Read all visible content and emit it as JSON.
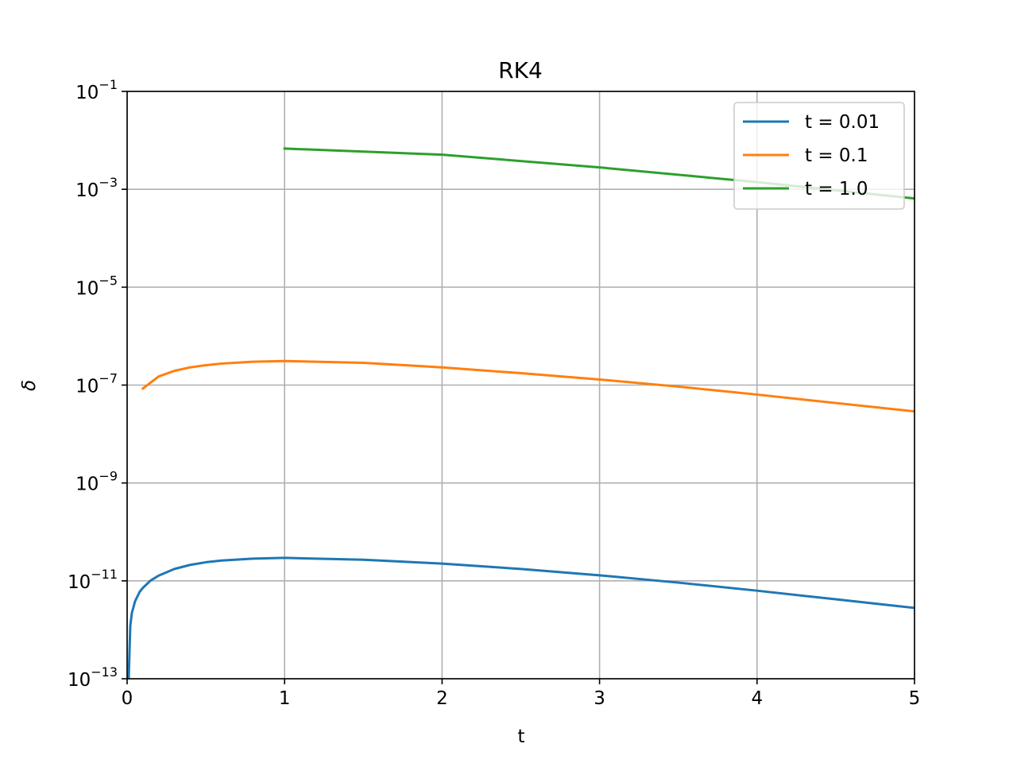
{
  "chart_data": {
    "type": "line",
    "title": "RK4",
    "xlabel": "t",
    "ylabel": "δ",
    "xlim": [
      0,
      5
    ],
    "ylim": [
      1e-13,
      0.1
    ],
    "yscale": "log",
    "grid": true,
    "legend_position": "top-right",
    "x_ticks": [
      {
        "value": 0,
        "label": "0"
      },
      {
        "value": 1,
        "label": "1"
      },
      {
        "value": 2,
        "label": "2"
      },
      {
        "value": 3,
        "label": "3"
      },
      {
        "value": 4,
        "label": "4"
      },
      {
        "value": 5,
        "label": "5"
      }
    ],
    "y_ticks": [
      {
        "exponent": -1,
        "base": "10",
        "exp_label": "−1"
      },
      {
        "exponent": -3,
        "base": "10",
        "exp_label": "−3"
      },
      {
        "exponent": -5,
        "base": "10",
        "exp_label": "−5"
      },
      {
        "exponent": -7,
        "base": "10",
        "exp_label": "−7"
      },
      {
        "exponent": -9,
        "base": "10",
        "exp_label": "−9"
      },
      {
        "exponent": -11,
        "base": "10",
        "exp_label": "−11"
      },
      {
        "exponent": -13,
        "base": "10",
        "exp_label": "−13"
      }
    ],
    "series": [
      {
        "name": "t = 0.01",
        "color": "#1f77b4",
        "x": [
          0.01,
          0.02,
          0.03,
          0.05,
          0.08,
          0.1,
          0.15,
          0.2,
          0.3,
          0.4,
          0.5,
          0.6,
          0.8,
          1.0,
          1.5,
          2.0,
          2.5,
          3.0,
          3.5,
          4.0,
          4.5,
          5.0
        ],
        "y": [
          1e-13,
          1.2e-12,
          2.2e-12,
          3.8e-12,
          6e-12,
          7.2e-12,
          1.02e-11,
          1.28e-11,
          1.75e-11,
          2.12e-11,
          2.4e-11,
          2.6e-11,
          2.85e-11,
          2.95e-11,
          2.7e-11,
          2.25e-11,
          1.75e-11,
          1.3e-11,
          9.2e-12,
          6.3e-12,
          4.2e-12,
          2.8e-12
        ]
      },
      {
        "name": "t = 0.1",
        "color": "#ff7f0e",
        "x": [
          0.1,
          0.2,
          0.3,
          0.4,
          0.5,
          0.6,
          0.8,
          1.0,
          1.5,
          2.0,
          2.5,
          3.0,
          3.5,
          4.0,
          4.5,
          5.0
        ],
        "y": [
          8.5e-08,
          1.5e-07,
          1.95e-07,
          2.3e-07,
          2.55e-07,
          2.75e-07,
          3e-07,
          3.1e-07,
          2.85e-07,
          2.3e-07,
          1.75e-07,
          1.3e-07,
          9.3e-08,
          6.4e-08,
          4.3e-08,
          2.9e-08
        ]
      },
      {
        "name": "t = 1.0",
        "color": "#2ca02c",
        "x": [
          1.0,
          2.0,
          3.0,
          4.0,
          5.0
        ],
        "y": [
          0.0068,
          0.0051,
          0.0028,
          0.0014,
          0.00065
        ]
      }
    ]
  }
}
